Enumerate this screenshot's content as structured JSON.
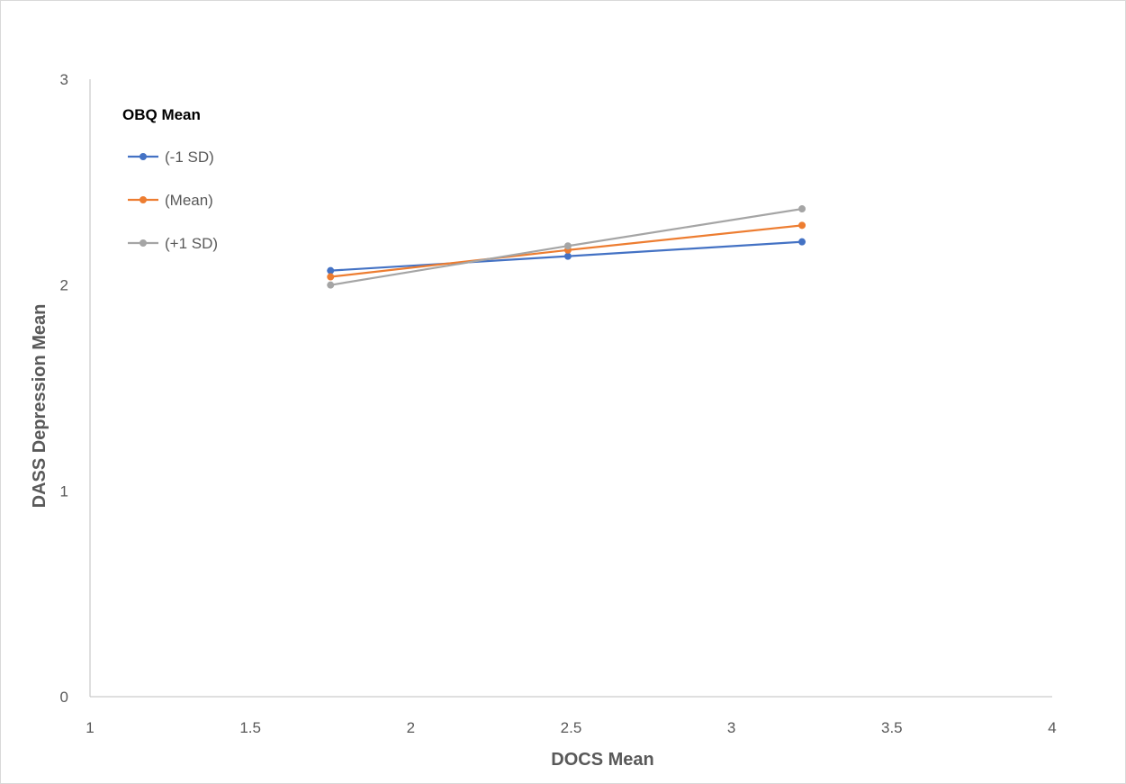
{
  "chart_data": {
    "type": "line",
    "title": "",
    "xlabel": "DOCS Mean",
    "ylabel": "DASS Depression Mean",
    "xlim": [
      1,
      4
    ],
    "ylim": [
      0,
      3
    ],
    "x_ticks": [
      "1",
      "1.5",
      "2",
      "2.5",
      "3",
      "3.5",
      "4"
    ],
    "y_ticks": [
      "0",
      "1",
      "2",
      "3"
    ],
    "grid": false,
    "legend_title": "OBQ Mean",
    "legend_position": "top-left",
    "series": [
      {
        "name": "(-1 SD)",
        "color": "#4472c4",
        "x": [
          1.75,
          2.49,
          3.22
        ],
        "y": [
          2.07,
          2.14,
          2.21
        ]
      },
      {
        "name": "(Mean)",
        "color": "#ed7d31",
        "x": [
          1.75,
          2.49,
          3.22
        ],
        "y": [
          2.04,
          2.17,
          2.29
        ]
      },
      {
        "name": "(+1 SD)",
        "color": "#a5a5a5",
        "x": [
          1.75,
          2.49,
          3.22
        ],
        "y": [
          2.0,
          2.19,
          2.37
        ]
      }
    ]
  }
}
